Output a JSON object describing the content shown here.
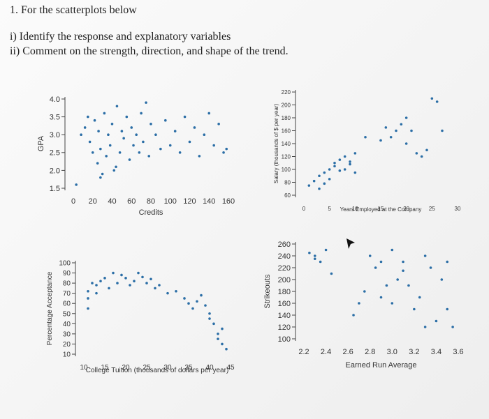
{
  "header": {
    "title": "1. For the scatterplots below",
    "items": [
      "i) Identify the response and explanatory variables",
      "ii) Comment on the strength, direction, and shape of the trend."
    ]
  },
  "chart_data": [
    {
      "type": "scatter",
      "xlabel": "Credits",
      "ylabel": "GPA",
      "color": "#2b6ea6",
      "xlim": [
        0,
        160
      ],
      "xticks": [
        0,
        20,
        40,
        60,
        80,
        100,
        120,
        140,
        160
      ],
      "ylim": [
        1.5,
        4.0
      ],
      "yticks": [
        1.5,
        {
          "value": 2,
          "label": "2.0"
        },
        2.5,
        {
          "value": 3,
          "label": "3.0"
        },
        3.5,
        {
          "value": 4,
          "label": "4.0"
        }
      ],
      "x": [
        3,
        8,
        12,
        15,
        17,
        20,
        22,
        25,
        26,
        28,
        30,
        32,
        34,
        36,
        38,
        40,
        42,
        45,
        48,
        50,
        52,
        55,
        58,
        60,
        62,
        65,
        68,
        70,
        72,
        75,
        78,
        80,
        85,
        90,
        95,
        100,
        105,
        110,
        115,
        120,
        125,
        130,
        135,
        140,
        145,
        150,
        155,
        158,
        28,
        44
      ],
      "values": [
        1.6,
        3.0,
        3.2,
        3.5,
        2.8,
        2.5,
        3.4,
        2.2,
        3.1,
        2.6,
        1.9,
        3.6,
        2.4,
        3.0,
        2.7,
        3.3,
        2.0,
        3.8,
        2.5,
        3.1,
        2.9,
        3.5,
        2.3,
        3.2,
        2.7,
        3.0,
        2.5,
        3.6,
        2.8,
        3.9,
        2.4,
        3.3,
        3.0,
        2.6,
        3.4,
        2.7,
        3.1,
        2.5,
        3.5,
        2.8,
        3.2,
        2.4,
        3.0,
        3.6,
        2.7,
        3.3,
        2.5,
        2.6,
        1.8,
        2.1
      ]
    },
    {
      "type": "scatter",
      "xlabel": "Years Employed at the Company",
      "ylabel": "Salary (thousands of $ per year)",
      "color": "#2b6ea6",
      "xlim": [
        0,
        30
      ],
      "xticks": [
        0,
        5,
        10,
        15,
        20,
        25,
        30
      ],
      "ylim": [
        60,
        220
      ],
      "yticks": [
        60,
        80,
        100,
        120,
        140,
        160,
        180,
        200,
        220
      ],
      "x": [
        1,
        2,
        3,
        3,
        4,
        4,
        5,
        5,
        6,
        6,
        7,
        7,
        8,
        8,
        9,
        9,
        10,
        10,
        12,
        15,
        16,
        17,
        18,
        19,
        20,
        20,
        21,
        22,
        23,
        24,
        25,
        26,
        27
      ],
      "values": [
        75,
        82,
        90,
        70,
        95,
        78,
        100,
        85,
        105,
        110,
        98,
        115,
        100,
        120,
        108,
        112,
        125,
        95,
        150,
        145,
        165,
        150,
        160,
        170,
        140,
        180,
        160,
        125,
        120,
        130,
        210,
        205,
        160
      ]
    },
    {
      "type": "scatter",
      "xlabel": "College Tuition (thousands of dollars per year)",
      "ylabel": "Percentage Acceptance",
      "color": "#2b6ea6",
      "xlim": [
        10,
        45
      ],
      "xticks": [
        10,
        15,
        20,
        25,
        30,
        35,
        40,
        45
      ],
      "ylim": [
        10,
        100
      ],
      "yticks": [
        10,
        20,
        30,
        40,
        50,
        60,
        70,
        80,
        90,
        100
      ],
      "x": [
        11,
        11,
        11,
        12,
        13,
        13,
        14,
        15,
        16,
        17,
        18,
        19,
        20,
        21,
        22,
        23,
        24,
        25,
        26,
        27,
        28,
        30,
        32,
        34,
        35,
        36,
        37,
        38,
        39,
        40,
        40,
        41,
        42,
        42,
        43,
        43,
        44
      ],
      "values": [
        55,
        65,
        72,
        80,
        70,
        78,
        82,
        85,
        75,
        90,
        80,
        88,
        85,
        78,
        82,
        90,
        86,
        80,
        84,
        75,
        78,
        70,
        72,
        65,
        60,
        55,
        62,
        68,
        58,
        50,
        45,
        40,
        30,
        25,
        20,
        35,
        15
      ]
    },
    {
      "type": "scatter",
      "xlabel": "Earned Run Average",
      "ylabel": "Strikeouts",
      "color": "#2b6ea6",
      "xlim": [
        2.2,
        3.6
      ],
      "xticks": [
        2.2,
        2.4,
        2.6,
        2.8,
        {
          "value": 3,
          "label": "3.0"
        },
        3.2,
        3.4,
        3.6
      ],
      "ylim": [
        100,
        260
      ],
      "yticks": [
        100,
        120,
        140,
        160,
        180,
        200,
        220,
        240,
        260
      ],
      "x": [
        2.25,
        2.3,
        2.3,
        2.35,
        2.4,
        2.45,
        2.7,
        2.75,
        2.8,
        2.85,
        2.9,
        2.95,
        3.0,
        3.05,
        3.1,
        3.1,
        3.15,
        3.2,
        3.25,
        3.3,
        3.35,
        3.4,
        3.45,
        3.5,
        3.5,
        3.55,
        2.65,
        2.9,
        3.0,
        3.3
      ],
      "values": [
        245,
        240,
        235,
        230,
        250,
        210,
        160,
        180,
        240,
        220,
        230,
        190,
        160,
        200,
        230,
        215,
        190,
        150,
        170,
        240,
        220,
        130,
        200,
        230,
        150,
        120,
        140,
        170,
        250,
        120
      ]
    }
  ]
}
